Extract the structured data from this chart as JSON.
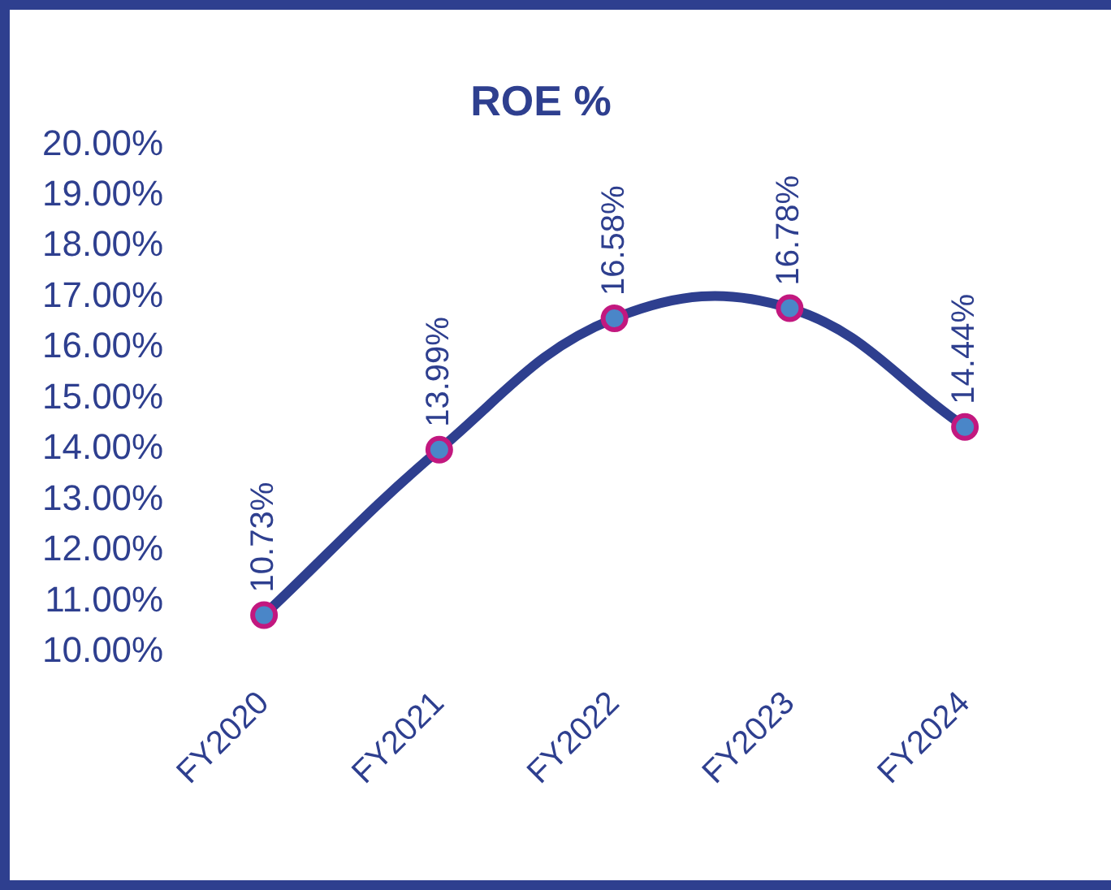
{
  "chart_data": {
    "type": "line",
    "title": "ROE %",
    "categories": [
      "FY2020",
      "FY2021",
      "FY2022",
      "FY2023",
      "FY2024"
    ],
    "series": [
      {
        "color": "#2e3f8f",
        "values": [
          10.73,
          13.99,
          16.58,
          16.78,
          14.44
        ],
        "value_labels": [
          "10.73%",
          "13.99%",
          "16.58%",
          "16.78%",
          "14.44%"
        ]
      }
    ],
    "ylim": [
      10,
      20
    ],
    "yticks": [
      {
        "value": 10,
        "label": "10.00%"
      },
      {
        "value": 11,
        "label": "11.00%"
      },
      {
        "value": 12,
        "label": "12.00%"
      },
      {
        "value": 13,
        "label": "13.00%"
      },
      {
        "value": 14,
        "label": "14.00%"
      },
      {
        "value": 15,
        "label": "15.00%"
      },
      {
        "value": 16,
        "label": "16.00%"
      },
      {
        "value": 17,
        "label": "17.00%"
      },
      {
        "value": 18,
        "label": "18.00%"
      },
      {
        "value": 19,
        "label": "19.00%"
      },
      {
        "value": 20,
        "label": "20.00%"
      }
    ],
    "grid": false,
    "legend": false,
    "marker": "circle",
    "line_style": "solid"
  }
}
